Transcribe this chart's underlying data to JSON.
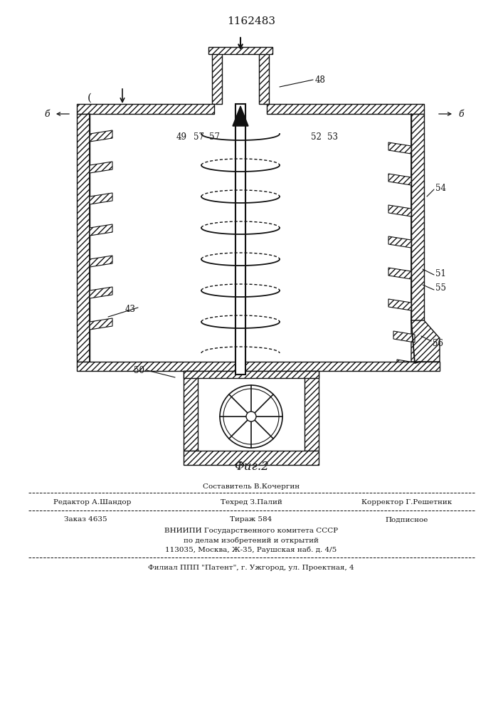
{
  "title": "1162483",
  "fig_label": "Фиг.2",
  "line_color": "#111111",
  "bg_color": "#ffffff",
  "footer": {
    "line1_center": "Составитель В.Кочергин",
    "line2_left": "Редактор А.Шандор",
    "line2_center": "Техред З.Палий",
    "line2_right": "Корректор Г.Решетник",
    "line3_left": "Заказ 4635",
    "line3_center": "Тираж 584",
    "line3_right": "Подписное",
    "line4": "ВНИИПИ Государственного комитета СССР",
    "line5": "по делам изобретений и открытий",
    "line6": "113035, Москва, Ж-35, Раушская наб. д. 4/5",
    "line7": "Филиал ППП \"Патент\", г. Ужгород, ул. Проектная, 4"
  }
}
